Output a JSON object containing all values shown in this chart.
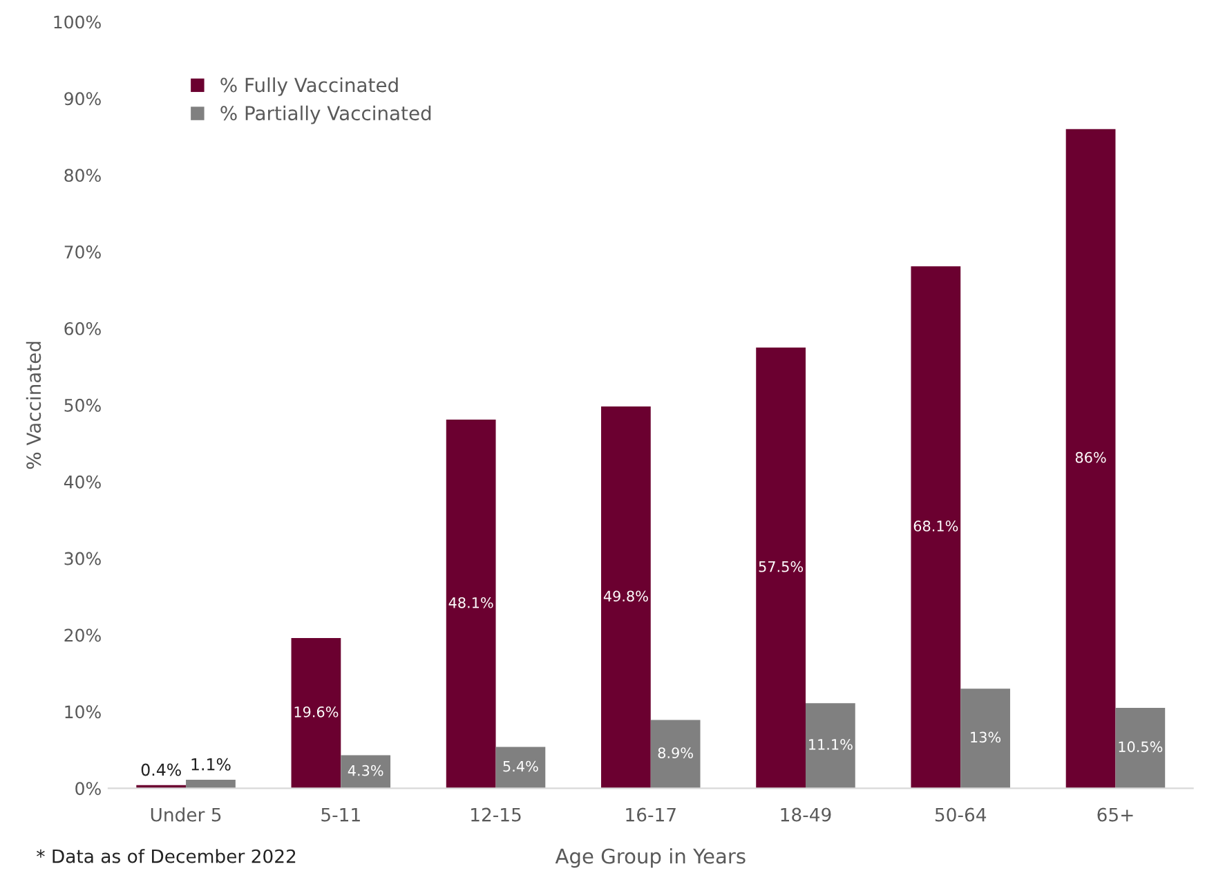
{
  "chart_data": {
    "type": "bar",
    "xlabel": "Age Group in Years",
    "ylabel": "% Vaccinated",
    "categories": [
      "Under 5",
      "5-11",
      "12-15",
      "16-17",
      "18-49",
      "50-64",
      "65+"
    ],
    "series": [
      {
        "name": "% Fully Vaccinated",
        "color": "#6b0030",
        "values": [
          0.4,
          19.6,
          48.1,
          49.8,
          57.5,
          68.1,
          86
        ],
        "value_labels": [
          "0.4%",
          "19.6%",
          "48.1%",
          "49.8%",
          "57.5%",
          "68.1%",
          "86%"
        ]
      },
      {
        "name": "% Partially Vaccinated",
        "color": "#808080",
        "values": [
          1.1,
          4.3,
          5.4,
          8.9,
          11.1,
          13,
          10.5
        ],
        "value_labels": [
          "1.1%",
          "4.3%",
          "5.4%",
          "8.9%",
          "11.1%",
          "13%",
          "10.5%"
        ]
      }
    ],
    "ylim": [
      0,
      100
    ],
    "yticks": [
      {
        "value": 0,
        "label": "0%"
      },
      {
        "value": 10,
        "label": "10%"
      },
      {
        "value": 20,
        "label": "20%"
      },
      {
        "value": 30,
        "label": "30%"
      },
      {
        "value": 40,
        "label": "40%"
      },
      {
        "value": 50,
        "label": "50%"
      },
      {
        "value": 60,
        "label": "60%"
      },
      {
        "value": 70,
        "label": "70%"
      },
      {
        "value": 80,
        "label": "80%"
      },
      {
        "value": 90,
        "label": "90%"
      },
      {
        "value": 100,
        "label": "100%"
      }
    ],
    "grid": false,
    "legend": "top left",
    "annotations": [
      "* Data as of December 2022"
    ]
  }
}
